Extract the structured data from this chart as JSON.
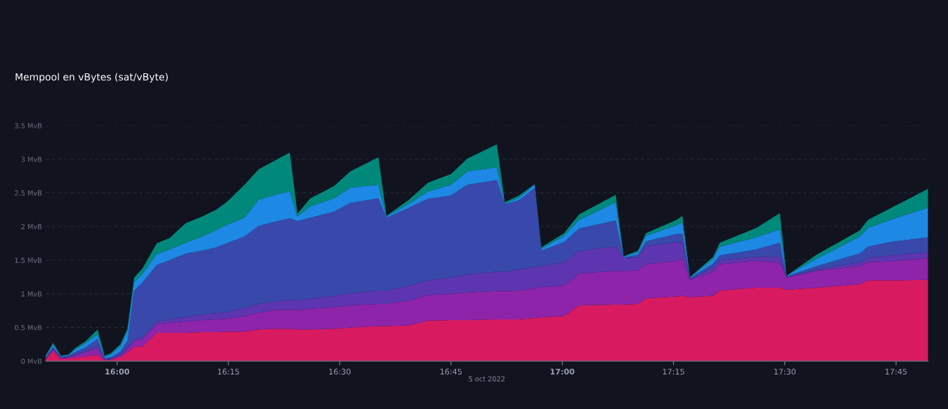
{
  "chart_data": {
    "type": "area",
    "stacked": true,
    "title": "Mempool en vBytes (sat/vByte)",
    "xlabel": "5 oct 2022",
    "x": [
      15.839,
      15.856,
      15.874,
      15.891,
      15.907,
      15.928,
      15.956,
      15.972,
      15.986,
      16.007,
      16.023,
      16.038,
      16.057,
      16.089,
      16.118,
      16.154,
      16.191,
      16.223,
      16.249,
      16.286,
      16.318,
      16.36,
      16.388,
      16.405,
      16.434,
      16.487,
      16.524,
      16.587,
      16.605,
      16.656,
      16.698,
      16.75,
      16.787,
      16.853,
      16.871,
      16.903,
      16.938,
      16.953,
      17.004,
      17.038,
      17.12,
      17.138,
      17.17,
      17.188,
      17.257,
      17.27,
      17.287,
      17.339,
      17.354,
      17.436,
      17.489,
      17.504,
      17.571,
      17.668,
      17.687,
      17.737,
      17.822
    ],
    "series": [
      {
        "color": "#d81b60",
        "values": [
          0.02,
          0.15,
          0.03,
          0.04,
          0.05,
          0.07,
          0.09,
          0.01,
          0.02,
          0.06,
          0.13,
          0.21,
          0.22,
          0.42,
          0.42,
          0.42,
          0.43,
          0.43,
          0.44,
          0.44,
          0.47,
          0.48,
          0.48,
          0.47,
          0.47,
          0.48,
          0.5,
          0.52,
          0.52,
          0.53,
          0.6,
          0.61,
          0.61,
          0.62,
          0.62,
          0.62,
          0.64,
          0.65,
          0.67,
          0.83,
          0.84,
          0.84,
          0.85,
          0.93,
          0.96,
          0.97,
          0.95,
          0.97,
          1.05,
          1.09,
          1.09,
          1.06,
          1.09,
          1.14,
          1.2,
          1.2,
          1.21
        ]
      },
      {
        "color": "#8e24aa",
        "values": [
          0.01,
          0.03,
          0.01,
          0.02,
          0.04,
          0.06,
          0.1,
          0.01,
          0.01,
          0.03,
          0.05,
          0.09,
          0.1,
          0.13,
          0.15,
          0.17,
          0.18,
          0.19,
          0.19,
          0.23,
          0.25,
          0.28,
          0.28,
          0.29,
          0.31,
          0.32,
          0.33,
          0.33,
          0.33,
          0.37,
          0.38,
          0.39,
          0.41,
          0.42,
          0.42,
          0.43,
          0.44,
          0.45,
          0.45,
          0.47,
          0.5,
          0.5,
          0.5,
          0.51,
          0.53,
          0.55,
          0.26,
          0.36,
          0.39,
          0.4,
          0.37,
          0.18,
          0.25,
          0.27,
          0.27,
          0.28,
          0.32
        ]
      },
      {
        "color": "#5e35b1",
        "values": [
          0.01,
          0.01,
          0.01,
          0.01,
          0.01,
          0.02,
          0.04,
          0.01,
          0.01,
          0.01,
          0.02,
          0.02,
          0.04,
          0.04,
          0.05,
          0.07,
          0.08,
          0.09,
          0.1,
          0.12,
          0.13,
          0.13,
          0.15,
          0.14,
          0.15,
          0.17,
          0.18,
          0.2,
          0.2,
          0.22,
          0.22,
          0.24,
          0.27,
          0.29,
          0.29,
          0.31,
          0.32,
          0.31,
          0.35,
          0.34,
          0.36,
          0.19,
          0.19,
          0.27,
          0.28,
          0.25,
          0.01,
          0.06,
          0.06,
          0.06,
          0.09,
          0.01,
          0.02,
          0.06,
          0.06,
          0.09,
          0.09
        ]
      },
      {
        "color": "#3949ab",
        "values": [
          0.01,
          0.02,
          0.01,
          0.01,
          0.04,
          0.05,
          0.1,
          0.01,
          0.02,
          0.04,
          0.1,
          0.73,
          0.81,
          0.84,
          0.88,
          0.94,
          0.95,
          0.98,
          1.03,
          1.06,
          1.16,
          1.19,
          1.21,
          1.18,
          1.2,
          1.25,
          1.34,
          1.37,
          1.08,
          1.16,
          1.21,
          1.22,
          1.33,
          1.36,
          1.0,
          1.03,
          1.17,
          0.23,
          0.3,
          0.33,
          0.39,
          0.01,
          0.04,
          0.07,
          0.12,
          0.12,
          0.01,
          0.06,
          0.07,
          0.11,
          0.21,
          0.01,
          0.05,
          0.13,
          0.17,
          0.2,
          0.22
        ]
      },
      {
        "color": "#1e88e5",
        "values": [
          0.02,
          0.04,
          0.01,
          0.01,
          0.04,
          0.06,
          0.07,
          0.02,
          0.04,
          0.08,
          0.15,
          0.12,
          0.13,
          0.16,
          0.16,
          0.16,
          0.21,
          0.26,
          0.27,
          0.28,
          0.39,
          0.4,
          0.4,
          0.07,
          0.17,
          0.2,
          0.23,
          0.2,
          0.02,
          0.06,
          0.11,
          0.16,
          0.2,
          0.19,
          0.01,
          0.04,
          0.05,
          0.03,
          0.09,
          0.13,
          0.27,
          0.01,
          0.04,
          0.08,
          0.13,
          0.17,
          0.01,
          0.07,
          0.13,
          0.18,
          0.2,
          0.01,
          0.11,
          0.25,
          0.28,
          0.33,
          0.44
        ]
      },
      {
        "color": "#00897b",
        "values": [
          0.01,
          0.02,
          0.01,
          0.01,
          0.02,
          0.03,
          0.07,
          0.02,
          0.02,
          0.03,
          0.03,
          0.07,
          0.08,
          0.16,
          0.17,
          0.29,
          0.3,
          0.3,
          0.35,
          0.49,
          0.45,
          0.52,
          0.58,
          0.04,
          0.12,
          0.18,
          0.24,
          0.41,
          0.01,
          0.06,
          0.13,
          0.16,
          0.19,
          0.34,
          0.02,
          0.03,
          0.01,
          0.02,
          0.04,
          0.08,
          0.11,
          0.01,
          0.02,
          0.04,
          0.08,
          0.1,
          0.01,
          0.03,
          0.06,
          0.14,
          0.24,
          0.0,
          0.06,
          0.09,
          0.12,
          0.17,
          0.28
        ]
      }
    ],
    "xlim": [
      15.839,
      17.822
    ],
    "xticks": [
      {
        "value": 16,
        "label": "16:00"
      },
      {
        "value": 16.25,
        "label": "16:15"
      },
      {
        "value": 16.5,
        "label": "16:30"
      },
      {
        "value": 16.75,
        "label": "16:45"
      },
      {
        "value": 17,
        "label": "17:00"
      },
      {
        "value": 17.25,
        "label": "17:15"
      },
      {
        "value": 17.5,
        "label": "17:30"
      },
      {
        "value": 17.75,
        "label": "17:45"
      }
    ],
    "ylim": [
      0,
      3.5
    ],
    "yticks": [
      {
        "value": 0,
        "label": "0 MvB"
      },
      {
        "value": 0.5,
        "label": "0.5 MvB"
      },
      {
        "value": 1,
        "label": "1 MvB"
      },
      {
        "value": 1.5,
        "label": "1.5 MvB"
      },
      {
        "value": 2,
        "label": "2 MvB"
      },
      {
        "value": 2.5,
        "label": "2.5 MvB"
      },
      {
        "value": 3,
        "label": "3 MvB"
      },
      {
        "value": 3.5,
        "label": "3.5 MvB"
      }
    ],
    "grid": "y"
  }
}
